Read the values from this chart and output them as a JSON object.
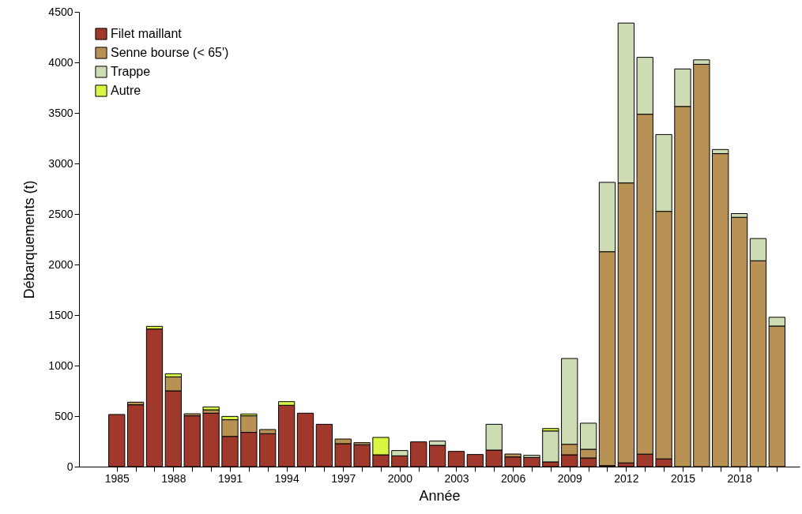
{
  "chart_data": {
    "type": "bar",
    "stacked": true,
    "xlabel": "Année",
    "ylabel": "Débarquements (t)",
    "x": [
      1985,
      1986,
      1987,
      1988,
      1989,
      1990,
      1991,
      1992,
      1993,
      1994,
      1995,
      1996,
      1997,
      1998,
      1999,
      2000,
      2001,
      2002,
      2003,
      2004,
      2005,
      2006,
      2007,
      2008,
      2009,
      2010,
      2011,
      2012,
      2013,
      2014,
      2015,
      2016,
      2017,
      2018,
      2019,
      2020
    ],
    "series": [
      {
        "name": "Filet maillant",
        "color": "#a0382b",
        "values": [
          516,
          612,
          1362,
          750,
          503,
          529,
          299,
          339,
          326,
          607,
          529,
          419,
          227,
          216,
          117,
          107,
          245,
          211,
          151,
          120,
          164,
          96,
          91,
          47,
          117,
          86,
          10,
          37,
          124,
          77,
          null,
          null,
          null,
          null,
          null,
          null
        ]
      },
      {
        "name": "Senne bourse (< 65')",
        "color": "#b89155",
        "values": [
          null,
          26,
          null,
          138,
          20,
          33,
          165,
          164,
          41,
          null,
          null,
          null,
          46,
          21,
          null,
          null,
          null,
          null,
          null,
          null,
          null,
          29,
          null,
          null,
          104,
          86,
          2117,
          2770,
          3363,
          2449,
          3564,
          3981,
          3097,
          2467,
          2037,
          1391
        ]
      },
      {
        "name": "Trappe",
        "color": "#cddcb3",
        "values": [
          null,
          null,
          null,
          null,
          null,
          null,
          null,
          null,
          null,
          null,
          null,
          null,
          null,
          null,
          null,
          52,
          null,
          42,
          null,
          null,
          255,
          null,
          21,
          306,
          849,
          258,
          686,
          1582,
          563,
          760,
          371,
          44,
          41,
          37,
          220,
          87
        ]
      },
      {
        "name": "Autre",
        "color": "#daf542",
        "values": [
          null,
          null,
          26,
          31,
          null,
          29,
          33,
          18,
          null,
          36,
          null,
          null,
          null,
          null,
          172,
          null,
          null,
          null,
          null,
          null,
          null,
          null,
          null,
          24,
          null,
          null,
          null,
          null,
          null,
          null,
          null,
          null,
          null,
          null,
          null,
          null
        ]
      }
    ],
    "xlim": [
      1983,
      2021.2
    ],
    "xticks": [
      1985,
      {
        "value": 1986,
        "label": null
      },
      {
        "value": 1987,
        "label": null
      },
      1988,
      {
        "value": 1989,
        "label": null
      },
      {
        "value": 1990,
        "label": null
      },
      1991,
      {
        "value": 1992,
        "label": null
      },
      {
        "value": 1993,
        "label": null
      },
      1994,
      {
        "value": 1995,
        "label": null
      },
      {
        "value": 1996,
        "label": null
      },
      1997,
      {
        "value": 1998,
        "label": null
      },
      {
        "value": 1999,
        "label": null
      },
      2000,
      {
        "value": 2001,
        "label": null
      },
      {
        "value": 2002,
        "label": null
      },
      2003,
      {
        "value": 2004,
        "label": null
      },
      {
        "value": 2005,
        "label": null
      },
      2006,
      {
        "value": 2007,
        "label": null
      },
      {
        "value": 2008,
        "label": null
      },
      2009,
      {
        "value": 2010,
        "label": null
      },
      {
        "value": 2011,
        "label": null
      },
      2012,
      {
        "value": 2013,
        "label": null
      },
      {
        "value": 2014,
        "label": null
      },
      2015,
      {
        "value": 2016,
        "label": null
      },
      {
        "value": 2017,
        "label": null
      },
      2018,
      {
        "value": 2019,
        "label": null
      },
      {
        "value": 2020,
        "label": null
      }
    ],
    "ylim": [
      0,
      4500
    ],
    "yticks": [
      0,
      500,
      1000,
      1500,
      2000,
      2500,
      3000,
      3500,
      4000,
      4500
    ],
    "grid": false,
    "legend": "top left"
  }
}
